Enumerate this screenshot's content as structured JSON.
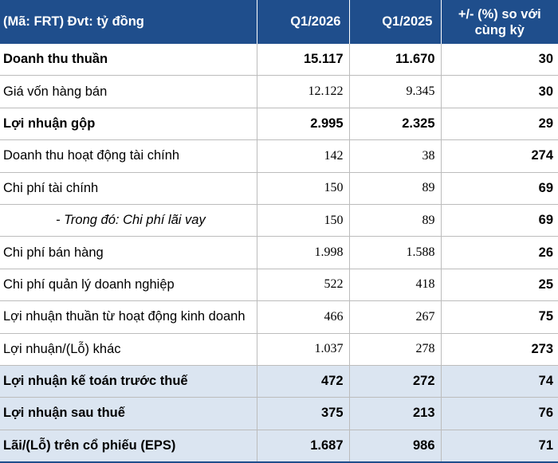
{
  "header": {
    "col0": "(Mã: FRT) Đvt: tỷ đồng",
    "col1": "Q1/2026",
    "col2": "Q1/2025",
    "col3_line1": "+/- (%) so với",
    "col3_line2": "cùng kỳ"
  },
  "rows": [
    {
      "label": "Doanh thu thuần",
      "q1_2026": "15.117",
      "q1_2025": "11.670",
      "pct": "30"
    },
    {
      "label": "Giá vốn hàng bán",
      "q1_2026": "12.122",
      "q1_2025": "9.345",
      "pct": "30"
    },
    {
      "label": "Lợi nhuận gộp",
      "q1_2026": "2.995",
      "q1_2025": "2.325",
      "pct": "29"
    },
    {
      "label": "Doanh thu hoạt động tài chính",
      "q1_2026": "142",
      "q1_2025": "38",
      "pct": "274"
    },
    {
      "label": "Chi phí tài chính",
      "q1_2026": "150",
      "q1_2025": "89",
      "pct": "69"
    },
    {
      "label": "- Trong đó: Chi phí lãi vay",
      "q1_2026": "150",
      "q1_2025": "89",
      "pct": "69"
    },
    {
      "label": "Chi phí bán hàng",
      "q1_2026": "1.998",
      "q1_2025": "1.588",
      "pct": "26"
    },
    {
      "label": "Chi phí quản lý doanh nghiệp",
      "q1_2026": "522",
      "q1_2025": "418",
      "pct": "25"
    },
    {
      "label": "Lợi nhuận thuần từ hoạt động kinh doanh",
      "q1_2026": "466",
      "q1_2025": "267",
      "pct": "75"
    },
    {
      "label": "Lợi nhuận/(Lỗ) khác",
      "q1_2026": "1.037",
      "q1_2025": "278",
      "pct": "273"
    },
    {
      "label": "Lợi nhuận kế toán trước thuế",
      "q1_2026": "472",
      "q1_2025": "272",
      "pct": "74"
    },
    {
      "label": "Lợi nhuận sau thuế",
      "q1_2026": "375",
      "q1_2025": "213",
      "pct": "76"
    },
    {
      "label": "Lãi/(Lỗ) trên cổ phiếu (EPS)",
      "q1_2026": "1.687",
      "q1_2025": "986",
      "pct": "71"
    }
  ],
  "colors": {
    "header_bg": "#1f4e8c",
    "shaded_row": "#dbe5f1"
  }
}
